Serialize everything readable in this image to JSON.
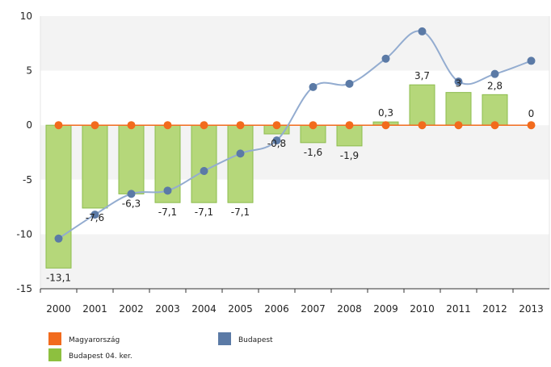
{
  "chart_data": {
    "type": "bar",
    "categories": [
      "2000",
      "2001",
      "2002",
      "2003",
      "2004",
      "2005",
      "2006",
      "2007",
      "2008",
      "2009",
      "2010",
      "2011",
      "2012",
      "2013"
    ],
    "series": [
      {
        "name": "Budapest 04. ker.",
        "type": "bar",
        "values": [
          -13.1,
          -7.6,
          -6.3,
          -7.1,
          -7.1,
          -7.1,
          -0.8,
          -1.6,
          -1.9,
          0.3,
          3.7,
          3.0,
          2.8,
          0
        ],
        "labels": [
          "-13,1",
          "-7,6",
          "-6,3",
          "-7,1",
          "-7,1",
          "-7,1",
          "-0,8",
          "-1,6",
          "-1,9",
          "0,3",
          "3,7",
          "3",
          "2,8",
          "0"
        ],
        "color": "#b5d77a"
      },
      {
        "name": "Budapest",
        "type": "line",
        "values": [
          -10.4,
          -8.2,
          -6.3,
          -6.0,
          -4.2,
          -2.6,
          -1.4,
          3.5,
          3.8,
          6.1,
          8.6,
          4.0,
          4.7,
          5.9
        ],
        "color": "#5b7aa6"
      },
      {
        "name": "Magyarország",
        "type": "line",
        "values": [
          0,
          0,
          0,
          0,
          0,
          0,
          0,
          0,
          0,
          0,
          0,
          0,
          0,
          0
        ],
        "color": "#f26b1d"
      }
    ],
    "yticks": [
      "10",
      "5",
      "0",
      "-5",
      "-10",
      "-15"
    ],
    "ylim": [
      -15,
      10
    ],
    "legend": [
      {
        "name": "Magyarország",
        "color": "#f26b1d"
      },
      {
        "name": "Budapest",
        "color": "#5b7aa6"
      },
      {
        "name": "Budapest 04. ker.",
        "color": "#8dc03f"
      }
    ],
    "legend_position": "bottom-left",
    "grid": "horizontal-bands"
  }
}
